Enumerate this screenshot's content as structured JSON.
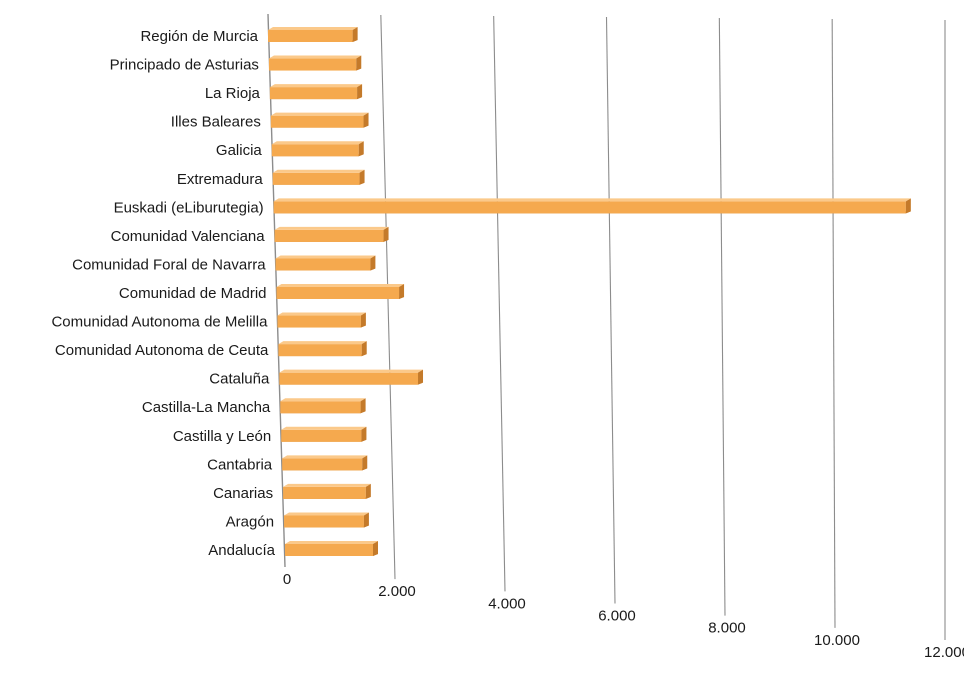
{
  "chart_data": {
    "type": "bar",
    "orientation": "horizontal",
    "style": "3d-perspective",
    "title": "",
    "xlabel": "",
    "ylabel": "",
    "xlim": [
      0,
      12000
    ],
    "grid": true,
    "legend": "none",
    "colors": {
      "bar_front": "#F5A94E",
      "bar_top": "#FBC98A",
      "bar_end": "#C47A2A",
      "bar_bottom": "#D88935",
      "gridline": "#8C8C8C",
      "text": "#1A1A1A"
    },
    "categories": [
      "Región de Murcia",
      "Principado de Asturias",
      "La Rioja",
      "Illes Baleares",
      "Galicia",
      "Extremadura",
      "Euskadi (eLiburutegia)",
      "Comunidad Valenciana",
      "Comunidad Foral de Navarra",
      "Comunidad de Madrid",
      "Comunidad Autonoma de Melilla",
      "Comunidad Autonoma de Ceuta",
      "Cataluña",
      "Castilla-La Mancha",
      "Castilla y León",
      "Cantabria",
      "Canarias",
      "Aragón",
      "Andalucía"
    ],
    "values": [
      1500,
      1550,
      1550,
      1650,
      1550,
      1550,
      11300,
      1950,
      1700,
      2200,
      1500,
      1500,
      2500,
      1450,
      1450,
      1450,
      1500,
      1450,
      1600
    ],
    "x_ticks": [
      0,
      2000,
      4000,
      6000,
      8000,
      10000,
      12000
    ],
    "x_tick_labels": [
      "0",
      "2.000",
      "4.000",
      "6.000",
      "8.000",
      "10.000",
      "12.000"
    ]
  }
}
